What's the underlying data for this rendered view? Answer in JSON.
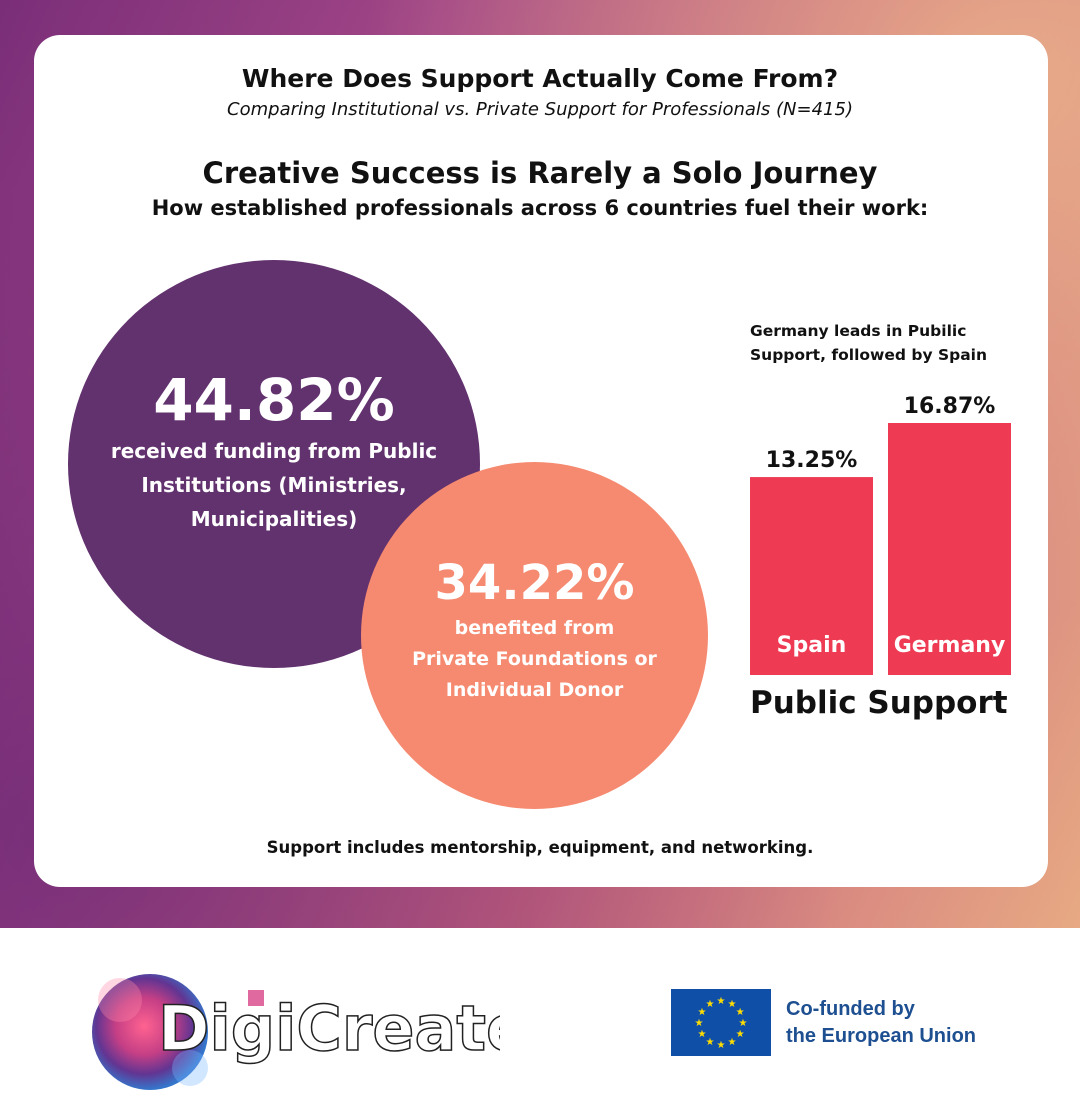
{
  "header": {
    "title": "Where Does Support Actually Come From?",
    "subtitle": "Comparing Institutional vs. Private Support for Professionals (N=415)",
    "headline": "Creative Success is Rarely a Solo Journey",
    "subheadline": "How established professionals across 6 countries fuel their work:"
  },
  "circles": {
    "public": {
      "value": "44.82%",
      "desc": [
        "received funding from Public",
        "Institutions (Ministries,",
        "Municipalities)"
      ],
      "color": "#62326f"
    },
    "private": {
      "value": "34.22%",
      "desc": [
        "benefited from",
        "Private Foundations or",
        "Individual Donor"
      ],
      "color": "#f58a70"
    }
  },
  "chart_note": [
    "Germany leads in Pubilic",
    "Support, followed by Spain"
  ],
  "chart_data": {
    "type": "bar",
    "categories": [
      "Spain",
      "Germany"
    ],
    "values": [
      13.25,
      16.87
    ],
    "value_labels": [
      "13.25%",
      "16.87%"
    ],
    "xlabel": "Public Support",
    "bar_color": "#ee3a52",
    "grid": false
  },
  "footnote": "Support includes mentorship, equipment, and networking.",
  "footer": {
    "logo_text": "DigiCreate",
    "eu_text": [
      "Co-funded by",
      "the European Union"
    ],
    "eu_blue": "#0f4fa8",
    "eu_star": "#ffdd00"
  }
}
